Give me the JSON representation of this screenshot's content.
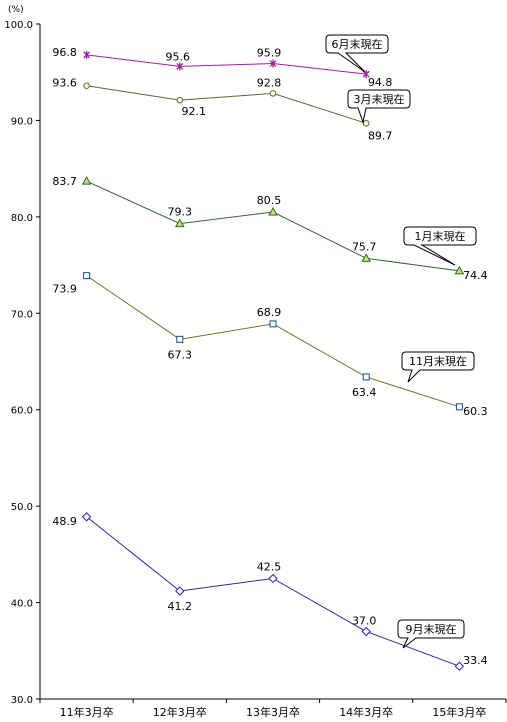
{
  "chart_data": {
    "type": "line",
    "unit_label": "(%)",
    "categories": [
      "11年3月卒",
      "12年3月卒",
      "13年3月卒",
      "14年3月卒",
      "15年3月卒"
    ],
    "ylim": [
      30,
      100
    ],
    "yticks": [
      30,
      40,
      50,
      60,
      70,
      80,
      90,
      100
    ],
    "ytick_labels": [
      "30.0",
      "40.0",
      "50.0",
      "60.0",
      "70.0",
      "80.0",
      "90.0",
      "100.0"
    ],
    "grid": false,
    "series": [
      {
        "name": "6月末現在",
        "values": [
          96.8,
          95.6,
          95.9,
          94.8,
          null
        ],
        "labels": [
          "96.8",
          "95.6",
          "95.9",
          "94.8",
          ""
        ],
        "color": "#a020a0",
        "marker": "star"
      },
      {
        "name": "3月末現在",
        "values": [
          93.6,
          92.1,
          92.8,
          89.7,
          null
        ],
        "labels": [
          "93.6",
          "92.1",
          "92.8",
          "89.7",
          ""
        ],
        "color": "#556b2f",
        "marker": "circle"
      },
      {
        "name": "1月末現在",
        "values": [
          83.7,
          79.3,
          80.5,
          75.7,
          74.4
        ],
        "labels": [
          "83.7",
          "79.3",
          "80.5",
          "75.7",
          "74.4"
        ],
        "color": "#2e6b2e",
        "marker": "triangle"
      },
      {
        "name": "11月末現在",
        "values": [
          73.9,
          67.3,
          68.9,
          63.4,
          60.3
        ],
        "labels": [
          "73.9",
          "67.3",
          "68.9",
          "63.4",
          "60.3"
        ],
        "color": "#6b7a2a",
        "marker": "square"
      },
      {
        "name": "9月末現在",
        "values": [
          48.9,
          41.2,
          42.5,
          37.0,
          33.4
        ],
        "labels": [
          "48.9",
          "41.2",
          "42.5",
          "37.0",
          "33.4"
        ],
        "color": "#2828a8",
        "marker": "diamond"
      }
    ],
    "legend": "callouts next to each series"
  }
}
